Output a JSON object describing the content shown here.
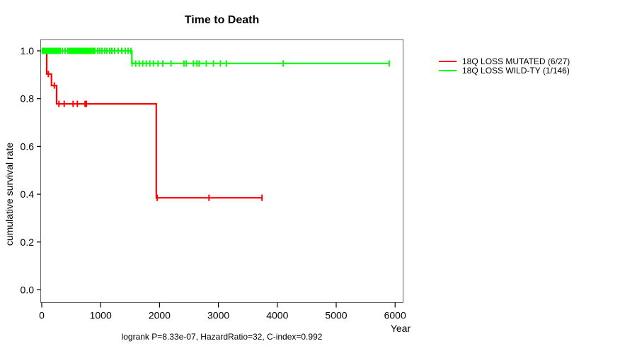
{
  "figure": {
    "title": "Time to Death",
    "footer": "logrank P=8.33e-07, HazardRatio=32, C-index=0.992",
    "x_axis_label": "Year",
    "y_axis_label": "cumulative survival rate"
  },
  "legend": {
    "items": [
      {
        "label": "18Q LOSS MUTATED (6/27)",
        "color": "#ff0000"
      },
      {
        "label": "18Q LOSS WILD-TY (1/146)",
        "color": "#00ff00"
      }
    ]
  },
  "chart_data": {
    "type": "line",
    "subtype": "kaplan-meier-step-survival",
    "title": "Time to Death",
    "xlabel": "Year",
    "ylabel": "cumulative survival rate",
    "xlim": [
      0,
      6000
    ],
    "ylim": [
      0.0,
      1.0
    ],
    "x_ticks": [
      0,
      1000,
      2000,
      3000,
      4000,
      5000,
      6000
    ],
    "y_ticks": [
      1.0,
      0.8,
      0.6,
      0.4,
      0.2,
      0.0
    ],
    "grid": false,
    "legend_position": "right-outside",
    "annotation": "logrank P=8.33e-07, HazardRatio=32, C-index=0.992",
    "series": [
      {
        "name": "18Q LOSS MUTATED (6/27)",
        "events": "6/27",
        "color": "#ff0000",
        "steps": [
          [
            0,
            1.0
          ],
          [
            84,
            1.0
          ],
          [
            84,
            0.903
          ],
          [
            165,
            0.903
          ],
          [
            165,
            0.855
          ],
          [
            252,
            0.855
          ],
          [
            252,
            0.778
          ],
          [
            1945,
            0.778
          ],
          [
            1945,
            0.385
          ],
          [
            3740,
            0.385
          ]
        ],
        "censors": [
          {
            "value": 0.903,
            "years": [
              112
            ]
          },
          {
            "value": 0.855,
            "years": [
              213
            ]
          },
          {
            "value": 0.778,
            "years": [
              292,
              381,
              532,
              605,
              735,
              758
            ]
          },
          {
            "value": 0.385,
            "years": [
              1960,
              2840,
              3740
            ]
          }
        ]
      },
      {
        "name": "18Q LOSS WILD-TY (1/146)",
        "events": "1/146",
        "color": "#00ff00",
        "steps": [
          [
            0,
            1.0
          ],
          [
            1530,
            1.0
          ],
          [
            1530,
            0.947
          ],
          [
            5900,
            0.947
          ]
        ],
        "censors": [
          {
            "value": 1.0,
            "years": [
              10,
              30,
              50,
              72,
              96,
              120,
              144,
              168,
              192,
              216,
              240,
              264,
              288,
              312,
              350,
              397,
              445,
              470,
              493,
              517,
              541,
              565,
              589,
              613,
              637,
              661,
              685,
              709,
              733,
              757,
              781,
              805,
              829,
              853,
              877,
              901,
              950,
              986,
              1022,
              1070,
              1106,
              1154,
              1190,
              1238,
              1298,
              1358,
              1418,
              1466,
              1514
            ]
          },
          {
            "value": 0.947,
            "years": [
              1535,
              1595,
              1655,
              1715,
              1775,
              1835,
              1895,
              1975,
              2055,
              2195,
              2415,
              2455,
              2575,
              2635,
              2675,
              2795,
              2915,
              3035,
              3135,
              4100,
              5900
            ]
          }
        ]
      }
    ]
  },
  "style": {
    "box_color": "#666666",
    "tick_color": "#000000",
    "curve_width": 2.2,
    "censor_half_height": 4.5
  }
}
